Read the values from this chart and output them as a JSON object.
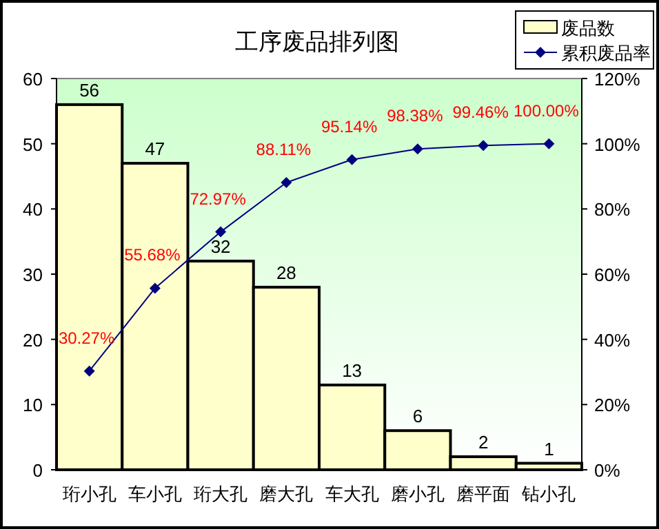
{
  "chart_data": {
    "type": "bar",
    "title": "工序废品排列图",
    "categories": [
      "珩小孔",
      "车小孔",
      "珩大孔",
      "磨大孔",
      "车大孔",
      "磨小孔",
      "磨平面",
      "钻小孔"
    ],
    "series": [
      {
        "name": "废品数",
        "color": "#ffffcc",
        "values": [
          56,
          47,
          32,
          28,
          13,
          6,
          2,
          1
        ],
        "value_labels": [
          "56",
          "47",
          "32",
          "28",
          "13",
          "6",
          "2",
          "1"
        ]
      },
      {
        "name": "累积废品率",
        "type": "line",
        "axis": "y2",
        "color": "#000080",
        "marker": "diamond",
        "values": [
          30.27,
          55.68,
          72.97,
          88.11,
          95.14,
          98.38,
          99.46,
          100.0
        ],
        "value_labels": [
          "30.27%",
          "55.68%",
          "72.97%",
          "88.11%",
          "95.14%",
          "98.38%",
          "99.46%",
          "100.00%"
        ]
      }
    ],
    "ylim": [
      0,
      60
    ],
    "yticks": [
      0,
      10,
      20,
      30,
      40,
      50,
      60
    ],
    "y2lim": [
      0,
      120
    ],
    "y2ticks": [
      {
        "value": 0,
        "label": "0%"
      },
      {
        "value": 20,
        "label": "20%"
      },
      {
        "value": 40,
        "label": "40%"
      },
      {
        "value": 60,
        "label": "60%"
      },
      {
        "value": 80,
        "label": "80%"
      },
      {
        "value": 100,
        "label": "100%"
      },
      {
        "value": 120,
        "label": "120%"
      }
    ],
    "grid": false,
    "legend": "top right"
  }
}
